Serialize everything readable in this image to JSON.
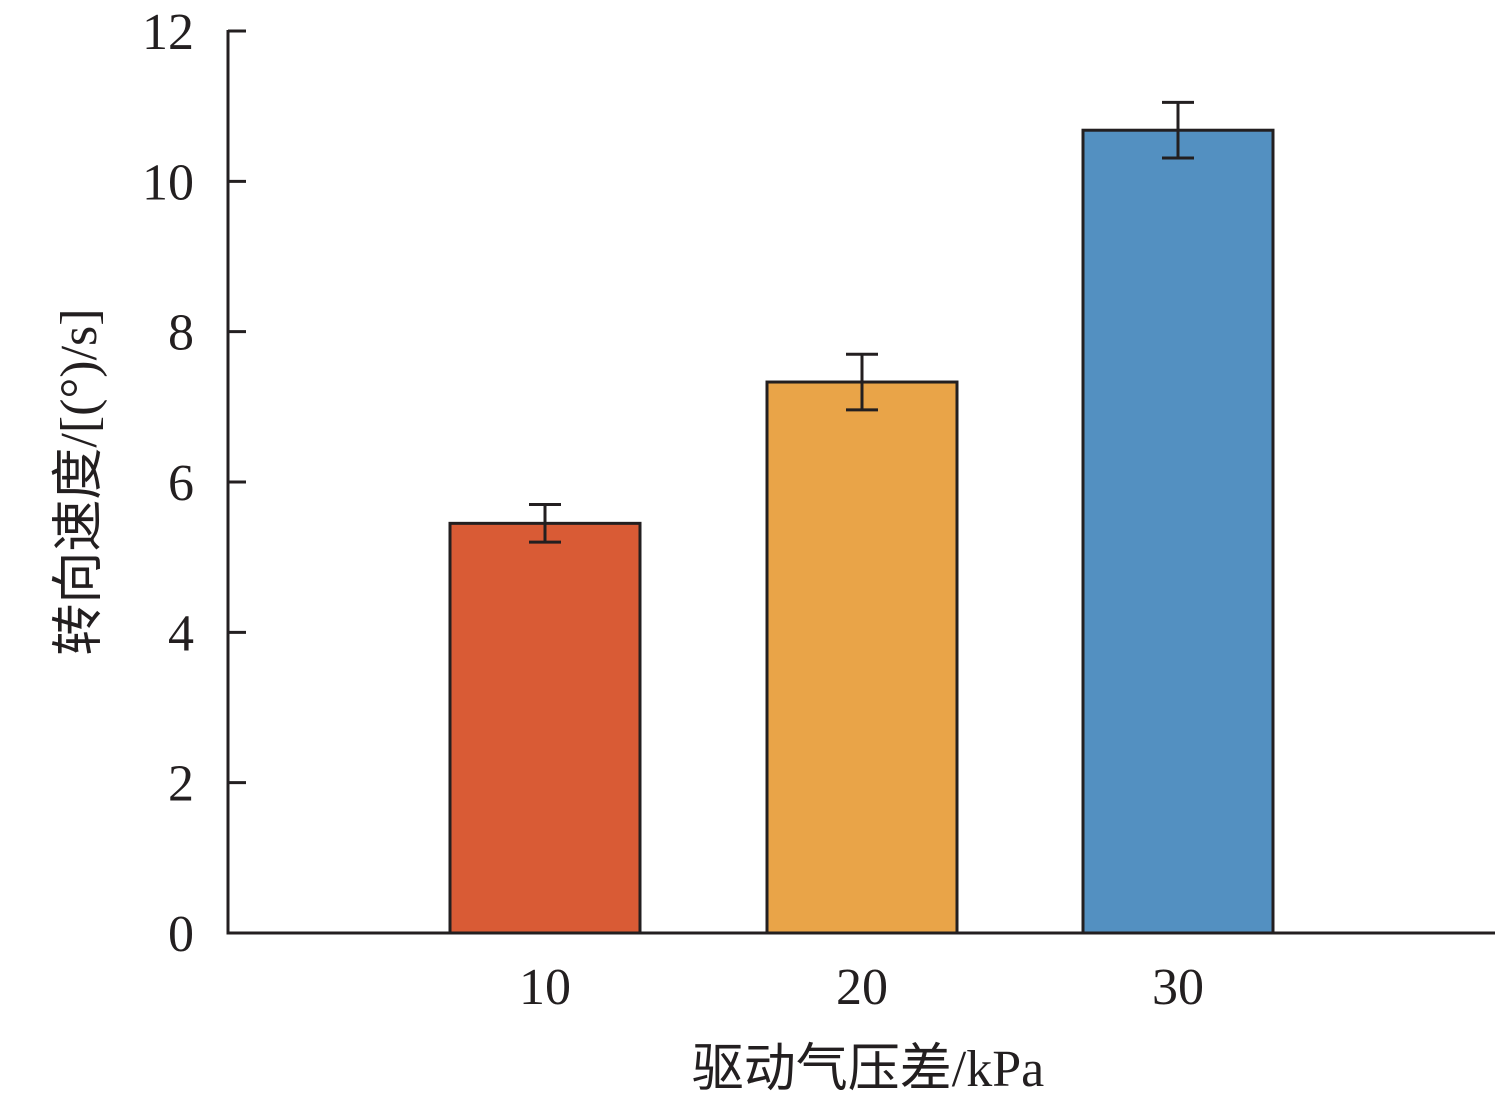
{
  "chart_data": {
    "type": "bar",
    "title": "",
    "xlabel": "驱动气压差/kPa",
    "ylabel": "转向速度/[(°)/s]",
    "categories": [
      "10",
      "20",
      "30"
    ],
    "values": [
      5.45,
      7.33,
      10.68
    ],
    "errors": [
      0.25,
      0.37,
      0.37
    ],
    "colors": [
      "#d95b35",
      "#e9a448",
      "#5390c1"
    ],
    "ylim": [
      0,
      12
    ],
    "yticks": [
      0,
      2,
      4,
      6,
      8,
      10,
      12
    ],
    "grid": false,
    "legend": "none"
  }
}
